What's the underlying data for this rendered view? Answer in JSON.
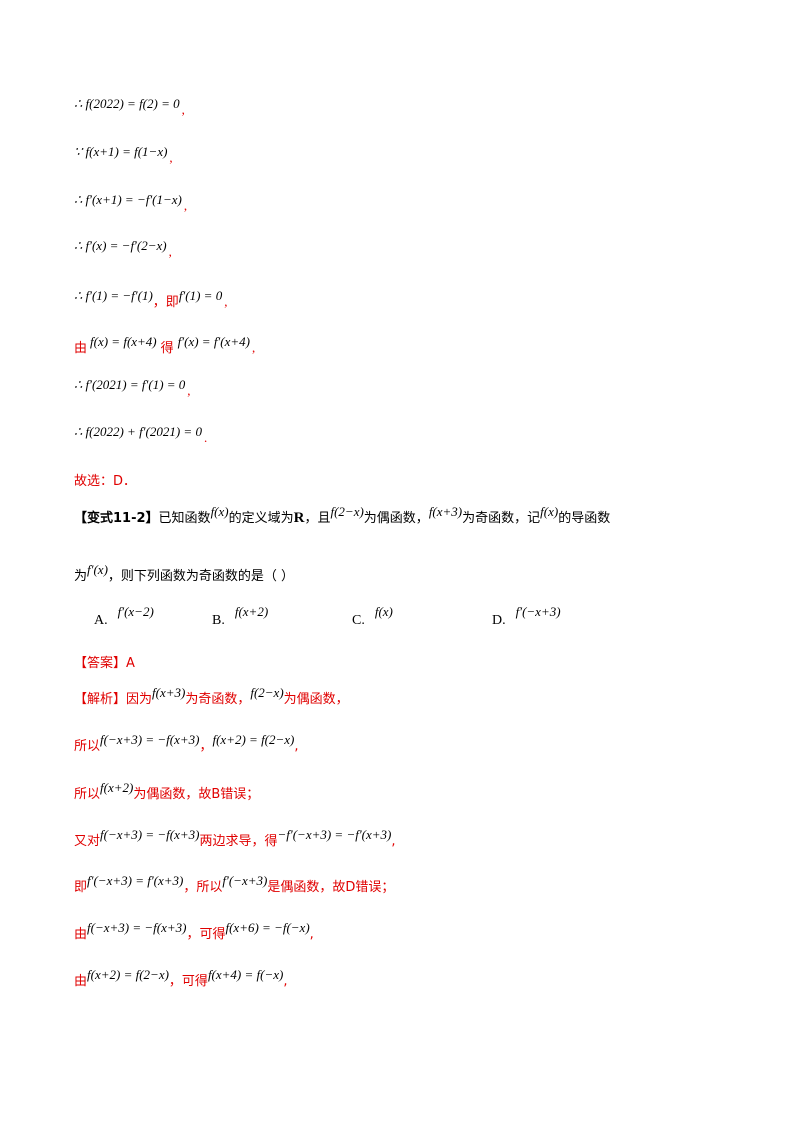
{
  "steps": [
    {
      "math": "∴ f(2022) = f(2) = 0",
      "tail": ","
    },
    {
      "math": "∵ f(x+1) = f(1−x)",
      "tail": ","
    },
    {
      "math": "∴ f′(x+1) = −f′(1−x)",
      "tail": ","
    },
    {
      "math": "∴ f′(x) = −f′(2−x)",
      "tail": ","
    },
    {
      "math": "∴ f′(1) = −f′(1)",
      "mid": "，即",
      "math2": "f′(1) = 0",
      "tail": ","
    },
    {
      "prefix": "由",
      "math": "f(x) = f(x+4)",
      "mid": "得",
      "math2": "f′(x) = f′(x+4)",
      "tail": ","
    },
    {
      "math": "∴ f′(2021) = f′(1) = 0",
      "tail": ","
    },
    {
      "math": "∴ f(2022) + f′(2021) = 0",
      "tail": "."
    }
  ],
  "choice1": "故选：D．",
  "problem": {
    "tag": "【变式11-2】",
    "t1": "已知函数",
    "m1": "f(x)",
    "t2": "的定义域为",
    "m2": "R",
    "t3": "，且",
    "m3": "f(2−x)",
    "t4": "为偶函数，",
    "m4": "f(x+3)",
    "t5": "为奇函数，记",
    "m5": "f(x)",
    "t6": "的导函数",
    "l2a": "为",
    "l2m": "f′(x)",
    "l2b": "，则下列函数为奇函数的是（    ）"
  },
  "options": [
    {
      "letter": "A.",
      "math": "f′(x−2)"
    },
    {
      "letter": "B.",
      "math": "f(x+2)"
    },
    {
      "letter": "C.",
      "math": "f(x)"
    },
    {
      "letter": "D.",
      "math": "f′(−x+3)"
    }
  ],
  "answer": "【答案】A",
  "analysis": {
    "l1": {
      "a": "【解析】因为",
      "m1": "f(x+3)",
      "b": "为奇函数，",
      "m2": "f(2−x)",
      "c": "为偶函数，"
    },
    "l2": {
      "a": "所以",
      "m1": "f(−x+3) = −f(x+3)",
      "b": "，",
      "m2": "f(x+2) = f(2−x)",
      "c": ","
    },
    "l3": {
      "a": "所以",
      "m1": "f(x+2)",
      "b": "为偶函数，故B错误；"
    },
    "l4": {
      "a": "又对",
      "m1": "f(−x+3) = −f(x+3)",
      "b": "两边求导，得",
      "m2": "−f′(−x+3) = −f′(x+3)",
      "c": ","
    },
    "l5": {
      "a": "即",
      "m1": "f′(−x+3) = f′(x+3)",
      "b": "，所以",
      "m2": "f′(−x+3)",
      "c": "是偶函数，故D错误；"
    },
    "l6": {
      "a": "由",
      "m1": "f(−x+3) = −f(x+3)",
      "b": "，可得",
      "m2": "f(x+6) = −f(−x)",
      "c": ","
    },
    "l7": {
      "a": "由",
      "m1": "f(x+2) = f(2−x)",
      "b": "，可得",
      "m2": "f(x+4) = f(−x)",
      "c": ","
    }
  }
}
